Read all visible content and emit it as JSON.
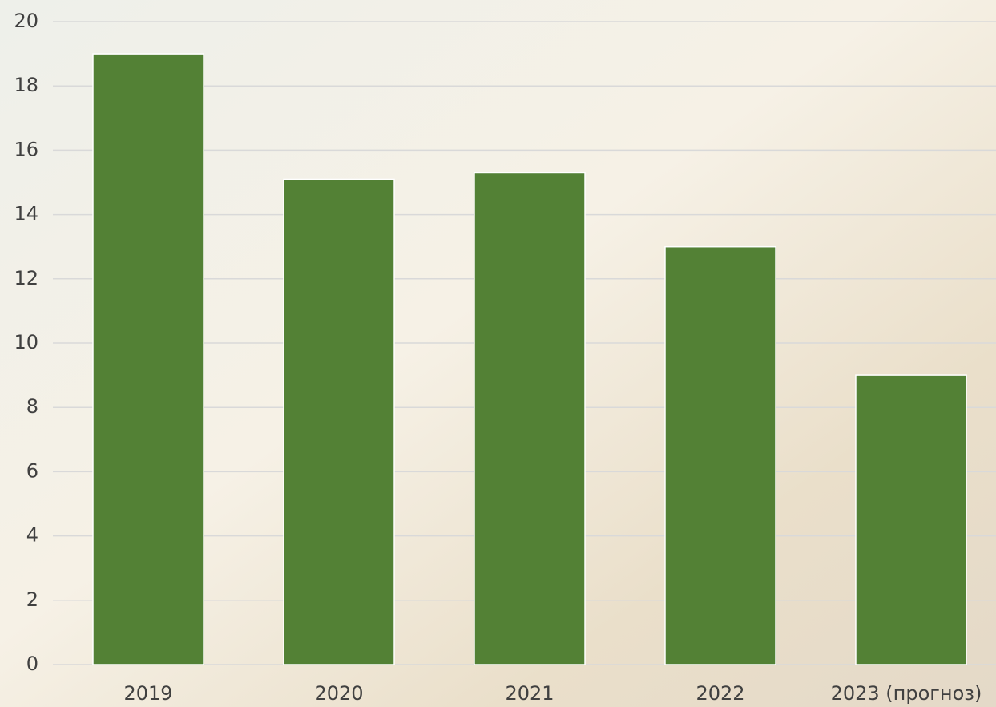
{
  "chart_data": {
    "type": "bar",
    "categories": [
      "2019",
      "2020",
      "2021",
      "2022",
      "2023 (прогноз)"
    ],
    "values": [
      19,
      15.1,
      15.3,
      13,
      9
    ],
    "color": "#538135",
    "ylim": [
      0,
      20
    ],
    "yticks": [
      0,
      2,
      4,
      6,
      8,
      10,
      12,
      14,
      16,
      18,
      20
    ],
    "grid": true
  }
}
